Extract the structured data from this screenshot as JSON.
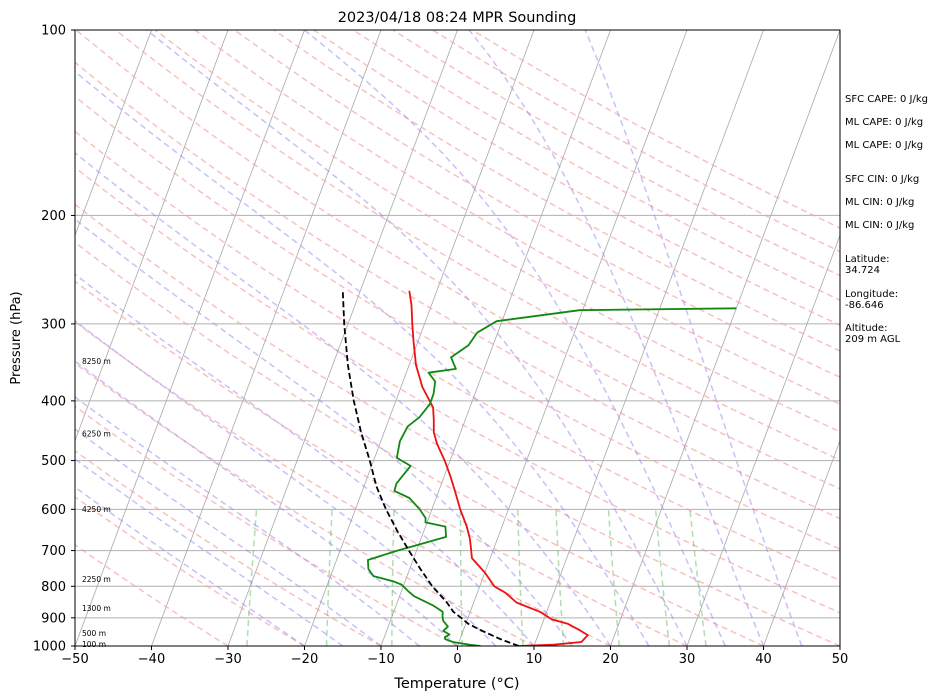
{
  "chart_data": {
    "type": "skew-t",
    "title": "2023/04/18 08:24 MPR Sounding",
    "xlabel": "Temperature (°C)",
    "ylabel": "Pressure (hPa)",
    "xlim": [
      -50,
      50
    ],
    "ylim_pressure": [
      1000,
      100
    ],
    "y_scale": "log",
    "x_ticks": [
      "−50",
      "−40",
      "−30",
      "−20",
      "−10",
      "0",
      "10",
      "20",
      "30",
      "40",
      "50"
    ],
    "y_ticks": [
      {
        "p": 100,
        "label": "100"
      },
      {
        "p": 200,
        "label": "200"
      },
      {
        "p": 300,
        "label": "300"
      },
      {
        "p": 400,
        "label": "400"
      },
      {
        "p": 500,
        "label": "500"
      },
      {
        "p": 600,
        "label": "600"
      },
      {
        "p": 700,
        "label": "700"
      },
      {
        "p": 800,
        "label": "800"
      },
      {
        "p": 900,
        "label": "900"
      },
      {
        "p": 1000,
        "label": "1000"
      }
    ],
    "height_labels": [
      {
        "p": 994,
        "label": "100 m"
      },
      {
        "p": 955,
        "label": "500 m"
      },
      {
        "p": 870,
        "label": "1300 m"
      },
      {
        "p": 780,
        "label": "2250 m"
      },
      {
        "p": 600,
        "label": "4250 m"
      },
      {
        "p": 453,
        "label": "6250 m"
      },
      {
        "p": 345,
        "label": "8250 m"
      }
    ],
    "series": [
      {
        "color": "#ee1111",
        "points": [
          [
            1000,
            8
          ],
          [
            995,
            12.5
          ],
          [
            985,
            16
          ],
          [
            960,
            16.5
          ],
          [
            940,
            15
          ],
          [
            920,
            13.3
          ],
          [
            905,
            11
          ],
          [
            880,
            9.1
          ],
          [
            850,
            5.6
          ],
          [
            820,
            3.7
          ],
          [
            800,
            1.9
          ],
          [
            760,
            0
          ],
          [
            720,
            -2.4
          ],
          [
            690,
            -3.1
          ],
          [
            670,
            -3.6
          ],
          [
            640,
            -4.6
          ],
          [
            600,
            -6.3
          ],
          [
            560,
            -7.9
          ],
          [
            530,
            -9.2
          ],
          [
            500,
            -10.7
          ],
          [
            470,
            -12.5
          ],
          [
            450,
            -13.5
          ],
          [
            430,
            -14.1
          ],
          [
            410,
            -14.8
          ],
          [
            380,
            -17.2
          ],
          [
            350,
            -19.1
          ],
          [
            320,
            -20.6
          ],
          [
            300,
            -21.6
          ],
          [
            280,
            -22.6
          ],
          [
            265,
            -23.6
          ]
        ]
      },
      {
        "color": "#118811",
        "points": [
          [
            1000,
            3
          ],
          [
            995,
            1.5
          ],
          [
            985,
            -0.8
          ],
          [
            975,
            -1.9
          ],
          [
            968,
            -2.1
          ],
          [
            958,
            -1.6
          ],
          [
            945,
            -2.6
          ],
          [
            930,
            -2.2
          ],
          [
            910,
            -3.1
          ],
          [
            895,
            -3.4
          ],
          [
            880,
            -3.6
          ],
          [
            860,
            -5.1
          ],
          [
            830,
            -8.1
          ],
          [
            815,
            -9.1
          ],
          [
            795,
            -10.3
          ],
          [
            785,
            -11.6
          ],
          [
            770,
            -14.4
          ],
          [
            750,
            -15.4
          ],
          [
            725,
            -15.9
          ],
          [
            700,
            -12.5
          ],
          [
            665,
            -6.8
          ],
          [
            640,
            -7.4
          ],
          [
            630,
            -10.2
          ],
          [
            620,
            -10.4
          ],
          [
            600,
            -11.6
          ],
          [
            575,
            -13.5
          ],
          [
            560,
            -15.8
          ],
          [
            545,
            -15.9
          ],
          [
            510,
            -14.9
          ],
          [
            495,
            -17.1
          ],
          [
            465,
            -17.5
          ],
          [
            440,
            -17.2
          ],
          [
            425,
            -16.1
          ],
          [
            405,
            -15.4
          ],
          [
            390,
            -15.4
          ],
          [
            372,
            -15.8
          ],
          [
            360,
            -17.1
          ],
          [
            355,
            -13.7
          ],
          [
            340,
            -14.9
          ],
          [
            325,
            -13.2
          ],
          [
            310,
            -12.7
          ],
          [
            297,
            -10.7
          ],
          [
            285,
            -0.4
          ],
          [
            283,
            20
          ]
        ]
      },
      {
        "color": "#000000",
        "dashed": true,
        "points": [
          [
            1000,
            8
          ],
          [
            975,
            5.3
          ],
          [
            945,
            2.5
          ],
          [
            920,
            0.3
          ],
          [
            900,
            -0.9
          ],
          [
            880,
            -2.2
          ],
          [
            850,
            -3.5
          ],
          [
            800,
            -6.2
          ],
          [
            750,
            -8.6
          ],
          [
            700,
            -11
          ],
          [
            650,
            -13.5
          ],
          [
            600,
            -16
          ],
          [
            550,
            -18.4
          ],
          [
            500,
            -20.5
          ],
          [
            450,
            -23
          ],
          [
            400,
            -25.5
          ],
          [
            350,
            -28
          ],
          [
            300,
            -30.5
          ],
          [
            265,
            -32.3
          ]
        ]
      }
    ],
    "sidebar": {
      "sfc_cape": "SFC CAPE: 0 J/kg",
      "ml_cape_1": "ML CAPE: 0 J/kg",
      "ml_cape_2": "ML CAPE: 0 J/kg",
      "sfc_cin": "SFC CIN: 0 J/kg",
      "ml_cin_1": "ML CIN: 0 J/kg",
      "ml_cin_2": "ML CIN: 0 J/kg",
      "latitude_label": "Latitude:",
      "latitude_value": "34.724",
      "longitude_label": "Longitude:",
      "longitude_value": "-86.646",
      "altitude_label": "Altitude:",
      "altitude_value": "209 m AGL"
    }
  }
}
